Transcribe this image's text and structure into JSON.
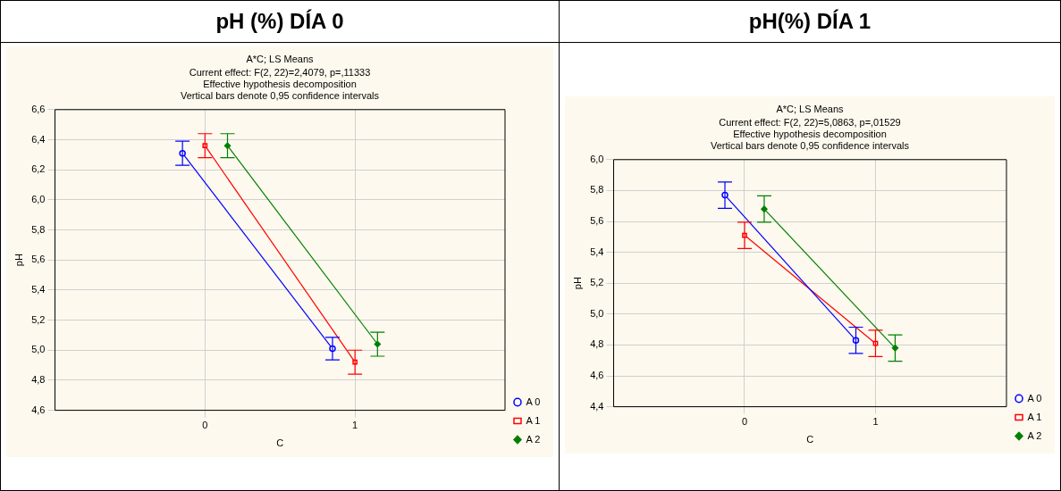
{
  "chart_data": [
    {
      "type": "line",
      "title": "pH (%) DÍA 0",
      "subtitle": "A*C; LS Means",
      "annotations": [
        "Current effect: F(2, 22)=2,4079, p=,11333",
        "Effective hypothesis decomposition",
        "Vertical bars denote 0,95 confidence intervals"
      ],
      "xlabel": "C",
      "ylabel": "pH",
      "categories": [
        "0",
        "1"
      ],
      "ylim": [
        4.6,
        6.6
      ],
      "yticks": [
        {
          "value": 4.6,
          "label": "4,6"
        },
        {
          "value": 4.8,
          "label": "4,8"
        },
        {
          "value": 5.0,
          "label": "5,0"
        },
        {
          "value": 5.2,
          "label": "5,2"
        },
        {
          "value": 5.4,
          "label": "5,4"
        },
        {
          "value": 5.6,
          "label": "5,6"
        },
        {
          "value": 5.8,
          "label": "5,8"
        },
        {
          "value": 6.0,
          "label": "6,0"
        },
        {
          "value": 6.2,
          "label": "6,2"
        },
        {
          "value": 6.4,
          "label": "6,4"
        },
        {
          "value": 6.6,
          "label": "6,6"
        }
      ],
      "grid": true,
      "legend": "bottom right",
      "series": [
        {
          "name": "A 0",
          "color": "#0000ff",
          "marker": "circle",
          "values": [
            6.31,
            5.01
          ],
          "errors": [
            0.08,
            0.075
          ]
        },
        {
          "name": "A 1",
          "color": "#ff0000",
          "marker": "square",
          "values": [
            6.36,
            4.92
          ],
          "errors": [
            0.08,
            0.08
          ]
        },
        {
          "name": "A 2",
          "color": "#008000",
          "marker": "diamond",
          "values": [
            6.36,
            5.04
          ],
          "errors": [
            0.08,
            0.08
          ]
        }
      ]
    },
    {
      "type": "line",
      "title": "pH(%) DÍA 1",
      "subtitle": "A*C; LS Means",
      "annotations": [
        "Current effect: F(2, 22)=5,0863, p=,01529",
        "Effective hypothesis decomposition",
        "Vertical bars denote 0,95 confidence intervals"
      ],
      "xlabel": "C",
      "ylabel": "pH",
      "categories": [
        "0",
        "1"
      ],
      "ylim": [
        4.4,
        6.0
      ],
      "yticks": [
        {
          "value": 4.4,
          "label": "4,4"
        },
        {
          "value": 4.6,
          "label": "4,6"
        },
        {
          "value": 4.8,
          "label": "4,8"
        },
        {
          "value": 5.0,
          "label": "5,0"
        },
        {
          "value": 5.2,
          "label": "5,2"
        },
        {
          "value": 5.4,
          "label": "5,4"
        },
        {
          "value": 5.6,
          "label": "5,6"
        },
        {
          "value": 5.8,
          "label": "5,8"
        },
        {
          "value": 6.0,
          "label": "6,0"
        }
      ],
      "grid": true,
      "legend": "bottom right",
      "series": [
        {
          "name": "A 0",
          "color": "#0000ff",
          "marker": "circle",
          "values": [
            5.77,
            4.83
          ],
          "errors": [
            0.085,
            0.085
          ]
        },
        {
          "name": "A 1",
          "color": "#ff0000",
          "marker": "square",
          "values": [
            5.51,
            4.81
          ],
          "errors": [
            0.085,
            0.085
          ]
        },
        {
          "name": "A 2",
          "color": "#008000",
          "marker": "diamond",
          "values": [
            5.68,
            4.78
          ],
          "errors": [
            0.085,
            0.085
          ]
        }
      ]
    }
  ]
}
